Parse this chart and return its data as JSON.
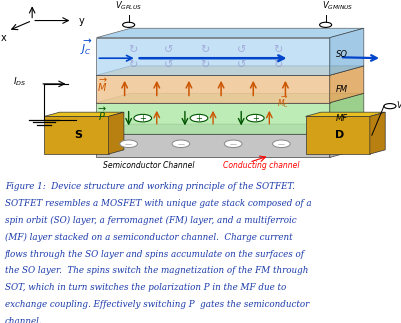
{
  "fig_width": 4.02,
  "fig_height": 3.23,
  "dpi": 100,
  "bg_color": "#ffffff",
  "caption_lines": [
    "Figure 1:  Device structure and working principle of the SOTFET.",
    "SOTFET resembles a MOSFET with unique gate stack composed of a",
    "spin orbit (SO) layer, a ferromagnet (FM) layer, and a multiferroic",
    "(MF) layer stacked on a semiconductor channel.  Charge current",
    "flows through the SO layer and spins accumulate on the surfaces of",
    "the SO layer.  The spins switch the magnetization of the FM through",
    "SOT, which in turn switches the polarization P in the MF due to",
    "exchange coupling. Effectively switching P  gates the semiconductor",
    "channel."
  ],
  "caption_color": "#1a3aaa",
  "caption_fontsize": 6.3,
  "so_color": "#b0d8f4",
  "fm_color": "#f0c898",
  "mf_color": "#b0e8a8",
  "semi_color": "#c0c0c0",
  "gold_color": "#d4a017",
  "arrow_color_blue": "#0044cc",
  "arrow_color_orange": "#cc5500",
  "arrow_color_green": "#005500",
  "spin_color": "#9090cc"
}
